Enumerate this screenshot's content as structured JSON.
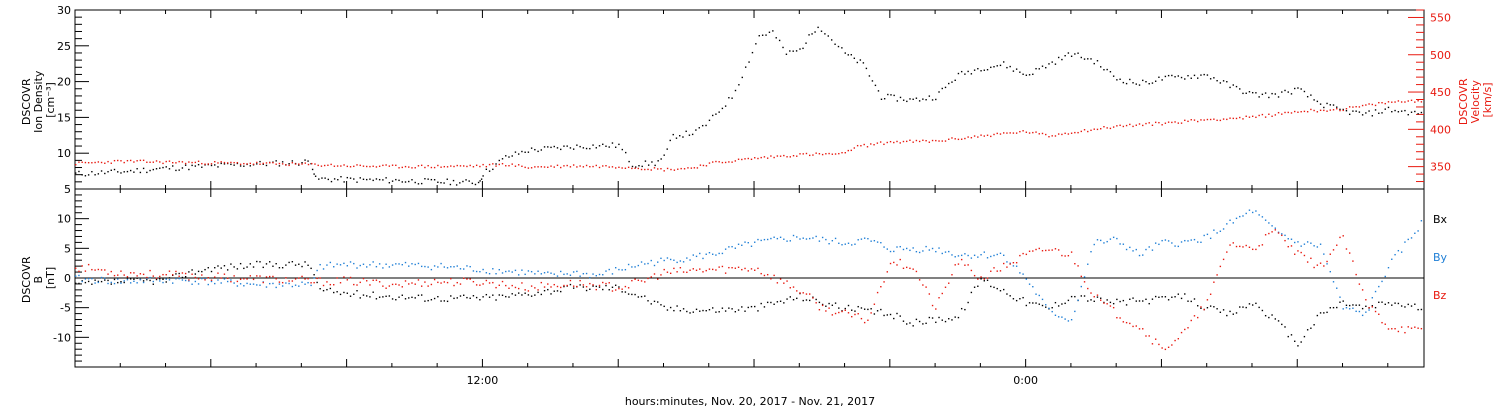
{
  "x_axis": {
    "label": "hours:minutes, Nov. 20, 2017 - Nov. 21, 2017",
    "ticks": [
      "12:00",
      "0:00"
    ]
  },
  "colors": {
    "black": "#000000",
    "red": "#e8190f",
    "blue": "#1f7fd6"
  },
  "chart_data": [
    {
      "type": "scatter",
      "panel": "top",
      "x_units": "hours since 2017-11-20 00:00",
      "xlim": [
        3,
        32.8
      ],
      "left_axis": {
        "label_lines": [
          "DSCOVR",
          "Ion Density",
          "[cm⁻³]"
        ],
        "ylim": [
          5,
          30
        ],
        "ticks": [
          5,
          10,
          15,
          20,
          25,
          30
        ]
      },
      "right_axis": {
        "label_lines": [
          "DSCOVR",
          "Velocity",
          "[km/s]"
        ],
        "ylim": [
          320,
          560
        ],
        "ticks": [
          350,
          400,
          450,
          500,
          550
        ]
      },
      "series": [
        {
          "color": "black",
          "axis": "left",
          "points": [
            [
              3,
              7.2
            ],
            [
              4,
              7.5
            ],
            [
              5,
              8
            ],
            [
              6,
              8.3
            ],
            [
              7,
              8.6
            ],
            [
              8,
              8.8
            ],
            [
              8.2,
              9
            ],
            [
              8.3,
              6.5
            ],
            [
              9,
              6.4
            ],
            [
              10,
              6.3
            ],
            [
              11,
              6.1
            ],
            [
              11.9,
              6
            ],
            [
              12,
              7.2
            ],
            [
              12.5,
              9.5
            ],
            [
              13,
              10.5
            ],
            [
              14,
              11
            ],
            [
              15,
              11.2
            ],
            [
              15.3,
              8.5
            ],
            [
              15.8,
              8.7
            ],
            [
              16,
              9.5
            ],
            [
              16.2,
              12.5
            ],
            [
              16.7,
              13
            ],
            [
              17,
              14.5
            ],
            [
              17.5,
              18
            ],
            [
              17.8,
              22
            ],
            [
              18.1,
              26.5
            ],
            [
              18.4,
              27
            ],
            [
              18.7,
              24
            ],
            [
              19,
              24.5
            ],
            [
              19.4,
              28
            ],
            [
              19.7,
              26
            ],
            [
              20,
              24
            ],
            [
              20.4,
              22.5
            ],
            [
              20.8,
              18
            ],
            [
              21.5,
              17.5
            ],
            [
              22,
              18
            ],
            [
              22.5,
              21
            ],
            [
              23,
              22
            ],
            [
              23.5,
              22.5
            ],
            [
              24,
              21
            ],
            [
              24.5,
              22.5
            ],
            [
              25,
              24
            ],
            [
              25.5,
              23
            ],
            [
              26,
              20.5
            ],
            [
              26.5,
              19.8
            ],
            [
              27,
              20.5
            ],
            [
              27.5,
              20.8
            ],
            [
              28,
              21
            ],
            [
              28.5,
              19.5
            ],
            [
              29,
              18.3
            ],
            [
              29.5,
              18.2
            ],
            [
              30,
              19
            ],
            [
              30.5,
              17
            ],
            [
              31,
              16
            ],
            [
              31.5,
              15.5
            ],
            [
              32,
              16.2
            ],
            [
              32.8,
              15.5
            ]
          ]
        },
        {
          "color": "red",
          "axis": "right",
          "points": [
            [
              3,
              355
            ],
            [
              4,
              358
            ],
            [
              5,
              357
            ],
            [
              6,
              356
            ],
            [
              7,
              355
            ],
            [
              8,
              354
            ],
            [
              9,
              352
            ],
            [
              10,
              351
            ],
            [
              11,
              351
            ],
            [
              12,
              352
            ],
            [
              12.5,
              354
            ],
            [
              13,
              350
            ],
            [
              14,
              352
            ],
            [
              15,
              351
            ],
            [
              16,
              347
            ],
            [
              16.6,
              349
            ],
            [
              17,
              355
            ],
            [
              18,
              362
            ],
            [
              19,
              367
            ],
            [
              20,
              368
            ],
            [
              20.2,
              377
            ],
            [
              21,
              384
            ],
            [
              22,
              385
            ],
            [
              23,
              392
            ],
            [
              24,
              398
            ],
            [
              24.5,
              392
            ],
            [
              25,
              397
            ],
            [
              26,
              405
            ],
            [
              27,
              409
            ],
            [
              28,
              414
            ],
            [
              29,
              417
            ],
            [
              30,
              425
            ],
            [
              31,
              428
            ],
            [
              32,
              437
            ],
            [
              32.8,
              440
            ]
          ]
        }
      ]
    },
    {
      "type": "scatter",
      "panel": "bottom",
      "x_units": "hours since 2017-11-20 00:00",
      "xlim": [
        3,
        32.8
      ],
      "left_axis": {
        "label_lines": [
          "DSCOVR",
          "B",
          "[nT]"
        ],
        "ylim": [
          -15,
          15
        ],
        "ticks": [
          -10,
          -5,
          0,
          5,
          10
        ]
      },
      "zero_line": true,
      "legend": [
        "Bx",
        "By",
        "Bz"
      ],
      "legend_position": "right",
      "series": [
        {
          "name": "Bx",
          "color": "black",
          "points": [
            [
              3,
              -1
            ],
            [
              4,
              -0.5
            ],
            [
              5,
              -0.3
            ],
            [
              5.5,
              1
            ],
            [
              6,
              1.8
            ],
            [
              7,
              2.3
            ],
            [
              8,
              2.5
            ],
            [
              8.2,
              2
            ],
            [
              8.4,
              -2
            ],
            [
              9,
              -2.5
            ],
            [
              10,
              -3
            ],
            [
              11,
              -3.3
            ],
            [
              12,
              -3.2
            ],
            [
              12.5,
              -3
            ],
            [
              13,
              -2.5
            ],
            [
              14,
              -1.5
            ],
            [
              15,
              -1.5
            ],
            [
              15.5,
              -3
            ],
            [
              16,
              -5
            ],
            [
              17,
              -5.3
            ],
            [
              18,
              -5
            ],
            [
              19,
              -3
            ],
            [
              19.5,
              -4
            ],
            [
              20,
              -5
            ],
            [
              21,
              -6
            ],
            [
              21.5,
              -7.5
            ],
            [
              22,
              -6.8
            ],
            [
              22.5,
              -6.5
            ],
            [
              23,
              0
            ],
            [
              23.5,
              -2
            ],
            [
              24,
              -4
            ],
            [
              24.5,
              -5
            ],
            [
              25,
              -3
            ],
            [
              26,
              -4
            ],
            [
              27,
              -3.5
            ],
            [
              27.5,
              -3
            ],
            [
              28,
              -5
            ],
            [
              28.5,
              -6
            ],
            [
              29,
              -4
            ],
            [
              29.5,
              -7
            ],
            [
              30,
              -11
            ],
            [
              30.5,
              -6
            ],
            [
              31,
              -4
            ],
            [
              31.5,
              -5
            ],
            [
              32,
              -4
            ],
            [
              32.8,
              -5
            ]
          ]
        },
        {
          "name": "By",
          "color": "blue",
          "points": [
            [
              3,
              0
            ],
            [
              4,
              -0.5
            ],
            [
              5,
              -0.2
            ],
            [
              6,
              -0.5
            ],
            [
              7,
              -1
            ],
            [
              8,
              -1
            ],
            [
              8.2,
              -1.2
            ],
            [
              8.4,
              2
            ],
            [
              9,
              2.4
            ],
            [
              10,
              2.3
            ],
            [
              11,
              2.1
            ],
            [
              12,
              1.5
            ],
            [
              13,
              1
            ],
            [
              13.5,
              0.5
            ],
            [
              14,
              1
            ],
            [
              14.5,
              0.5
            ],
            [
              15,
              1.5
            ],
            [
              15.5,
              2.5
            ],
            [
              16,
              3
            ],
            [
              17,
              4
            ],
            [
              18,
              6
            ],
            [
              19,
              7
            ],
            [
              20,
              6
            ],
            [
              20.5,
              6.5
            ],
            [
              21,
              5
            ],
            [
              22,
              5
            ],
            [
              22.5,
              4
            ],
            [
              23,
              4
            ],
            [
              23.5,
              4
            ],
            [
              24,
              0
            ],
            [
              24.5,
              -5.5
            ],
            [
              25,
              -7
            ],
            [
              25.5,
              6
            ],
            [
              26,
              6.5
            ],
            [
              26.5,
              4
            ],
            [
              27,
              6
            ],
            [
              27.5,
              6
            ],
            [
              28,
              7
            ],
            [
              29,
              11.5
            ],
            [
              29.5,
              8
            ],
            [
              30,
              6
            ],
            [
              30.5,
              5.5
            ],
            [
              31,
              -5
            ],
            [
              31.5,
              -6
            ],
            [
              32,
              2
            ],
            [
              32.8,
              10
            ]
          ]
        },
        {
          "name": "Bz",
          "color": "red",
          "points": [
            [
              3,
              2
            ],
            [
              4,
              1
            ],
            [
              5,
              0.6
            ],
            [
              6,
              0.3
            ],
            [
              7,
              0
            ],
            [
              8,
              -0.3
            ],
            [
              8.2,
              -0.5
            ],
            [
              8.4,
              -0.5
            ],
            [
              9,
              -0.4
            ],
            [
              10,
              -1
            ],
            [
              11,
              -0.5
            ],
            [
              12,
              -0.6
            ],
            [
              13,
              -1.5
            ],
            [
              14,
              -0.8
            ],
            [
              15,
              -1.5
            ],
            [
              15.5,
              -0.5
            ],
            [
              16,
              1
            ],
            [
              17,
              1.5
            ],
            [
              18,
              1.8
            ],
            [
              19,
              -2
            ],
            [
              19.5,
              -5
            ],
            [
              20,
              -6
            ],
            [
              20.5,
              -7
            ],
            [
              21,
              3
            ],
            [
              21.5,
              2
            ],
            [
              22,
              -5
            ],
            [
              22.5,
              3
            ],
            [
              23,
              0
            ],
            [
              24,
              4
            ],
            [
              24.5,
              5
            ],
            [
              25,
              4
            ],
            [
              25.5,
              -3
            ],
            [
              26,
              -6
            ],
            [
              26.5,
              -8
            ],
            [
              27,
              -12
            ],
            [
              27.5,
              -9
            ],
            [
              28,
              -4
            ],
            [
              28.5,
              6
            ],
            [
              29,
              5
            ],
            [
              29.5,
              8
            ],
            [
              30,
              4
            ],
            [
              30.5,
              2
            ],
            [
              31,
              7
            ],
            [
              31.5,
              -4
            ],
            [
              32,
              -8
            ],
            [
              32.8,
              -9
            ]
          ]
        }
      ]
    }
  ]
}
